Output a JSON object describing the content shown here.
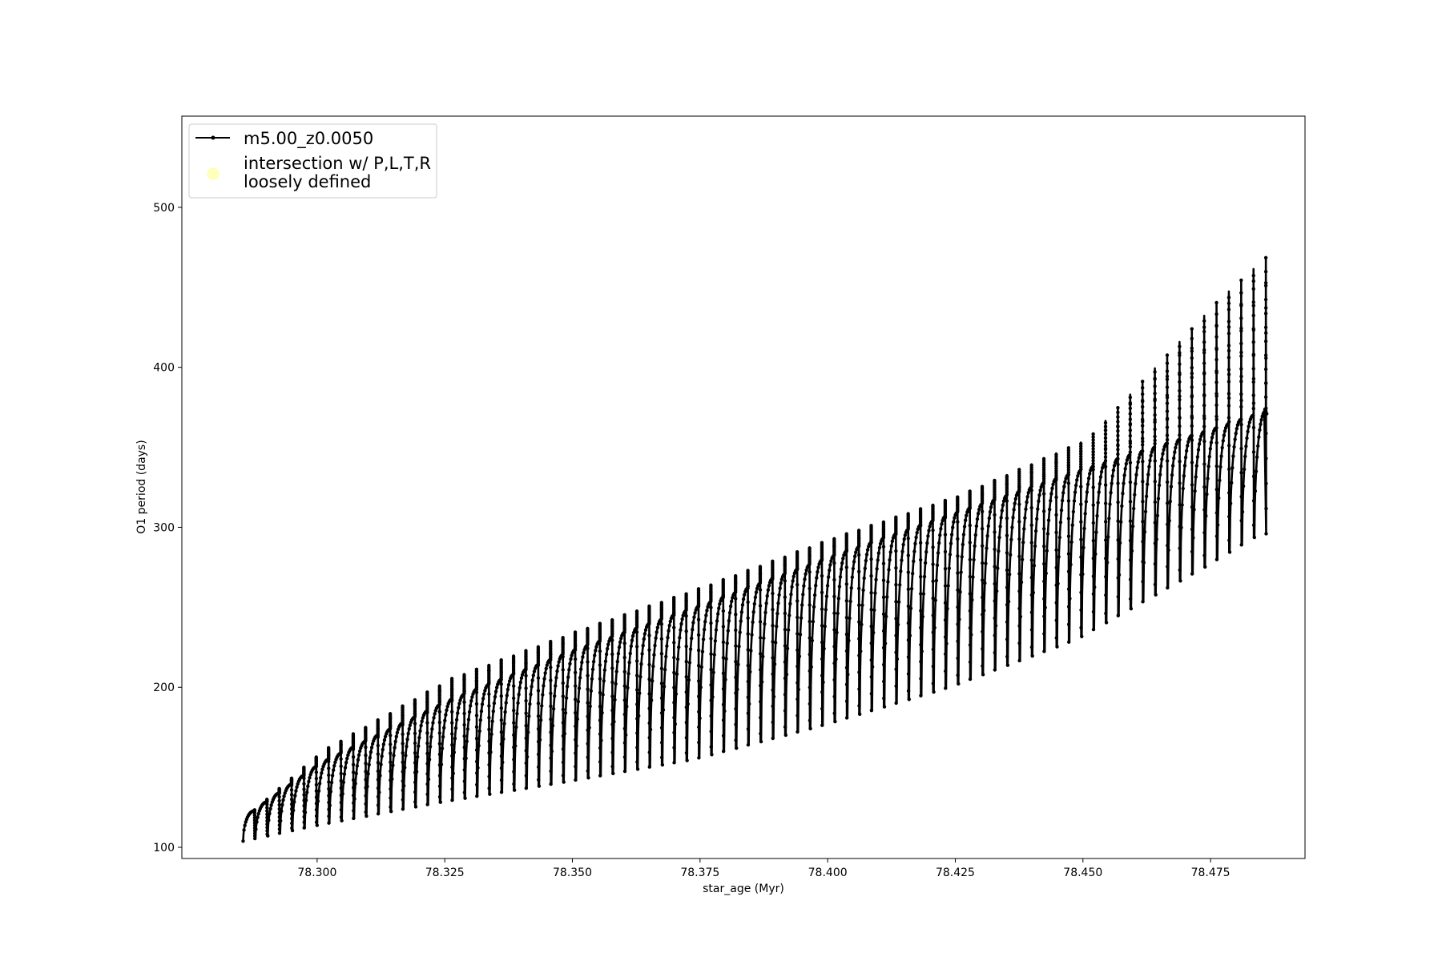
{
  "chart_data": {
    "type": "line",
    "title": "",
    "xlabel": "star_age (Myr)",
    "ylabel": "O1 period (days)",
    "xlim": [
      78.2735,
      78.4935
    ],
    "ylim": [
      93,
      557
    ],
    "xticks": [
      78.3,
      78.325,
      78.35,
      78.375,
      78.4,
      78.425,
      78.45,
      78.475
    ],
    "xtick_labels": [
      "78.300",
      "78.325",
      "78.350",
      "78.375",
      "78.400",
      "78.425",
      "78.450",
      "78.475"
    ],
    "yticks": [
      100,
      200,
      300,
      400,
      500
    ],
    "ytick_labels": [
      "100",
      "200",
      "300",
      "400",
      "500"
    ],
    "grid": false,
    "legend_position": "top-left",
    "legend": [
      {
        "label": "m5.00_z0.0050",
        "marker": "line-dot",
        "color": "#000000"
      },
      {
        "label_lines": [
          "intersection w/ P,L,T,R",
          "loosely defined"
        ],
        "marker": "circle",
        "color": "#ffffc0"
      }
    ],
    "series": [
      {
        "name": "m5.00_z0.0050",
        "color": "#000000",
        "x_range": [
          78.2855,
          78.486
        ],
        "pulse_count": 83,
        "envelope": {
          "x": [
            78.2855,
            78.3,
            78.325,
            78.35,
            78.375,
            78.4,
            78.425,
            78.45,
            78.475,
            78.486
          ],
          "upper": [
            120,
            153,
            192,
            224,
            252,
            282,
            310,
            337,
            362,
            374
          ],
          "lower": [
            103,
            113,
            128,
            141,
            155,
            176,
            200,
            230,
            275,
            296
          ],
          "spike": [
            120,
            160,
            205,
            235,
            263,
            293,
            320,
            355,
            440,
            472
          ]
        }
      }
    ]
  }
}
